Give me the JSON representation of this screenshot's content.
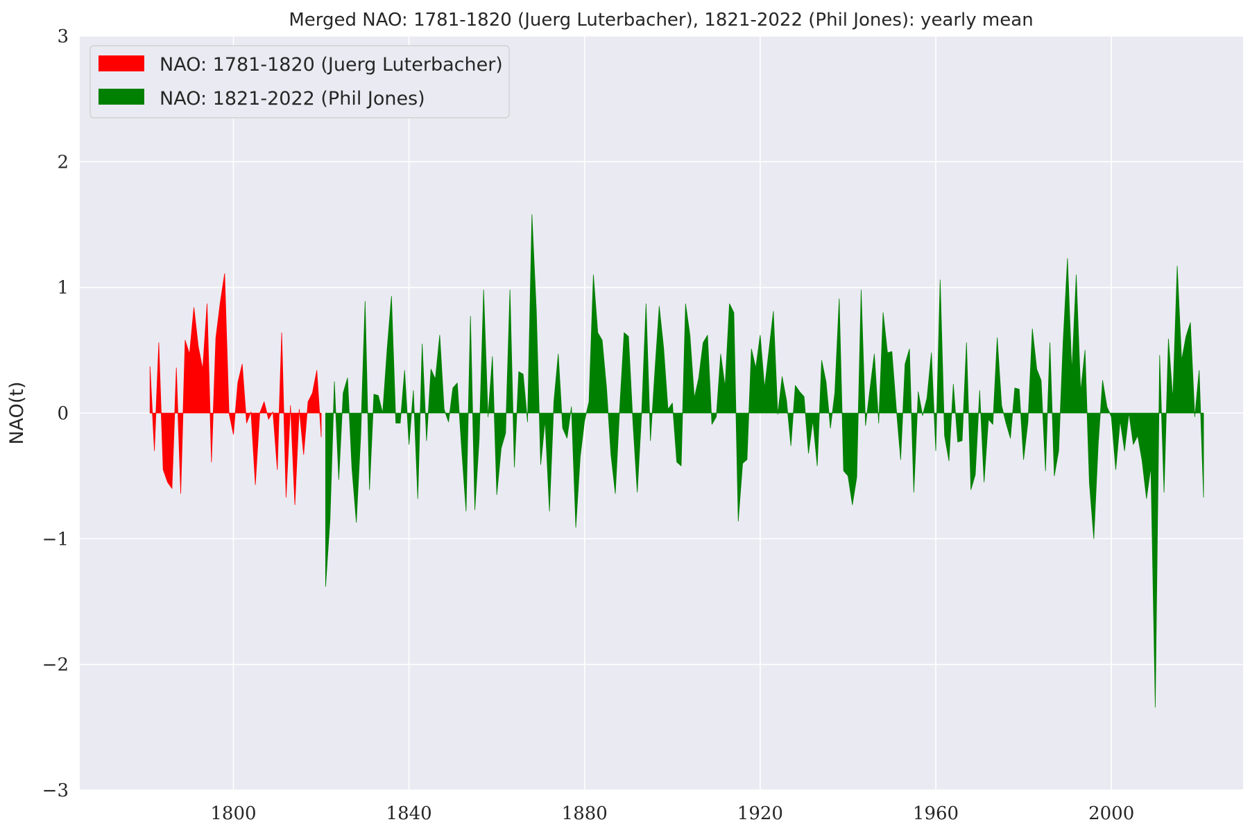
{
  "chart_data": {
    "type": "area",
    "title": "Merged NAO: 1781-1820 (Juerg Luterbacher), 1821-2022 (Phil Jones): yearly mean",
    "xlabel": "",
    "ylabel": "NAO(t)",
    "xlim": [
      1765,
      2030
    ],
    "ylim": [
      -3,
      3
    ],
    "xticks": [
      1800,
      1840,
      1880,
      1920,
      1960,
      2000
    ],
    "yticks": [
      -3,
      -2,
      -1,
      0,
      1,
      2,
      3
    ],
    "xtick_labels": [
      "1800",
      "1840",
      "1880",
      "1920",
      "1960",
      "2000"
    ],
    "ytick_labels": [
      "−3",
      "−2",
      "−1",
      "0",
      "1",
      "2",
      "3"
    ],
    "grid": true,
    "legend_position": "top-left",
    "series": [
      {
        "name": "NAO: 1781-1820 (Juerg Luterbacher)",
        "color": "#ff0000",
        "x_start": 1781,
        "values": [
          0.37,
          -0.3,
          0.56,
          -0.45,
          -0.55,
          -0.6,
          0.36,
          -0.64,
          0.58,
          0.47,
          0.84,
          0.53,
          0.35,
          0.87,
          -0.39,
          0.6,
          0.88,
          1.11,
          0.0,
          -0.17,
          0.24,
          0.39,
          -0.08,
          0.01,
          -0.57,
          0.0,
          0.09,
          -0.05,
          0.01,
          -0.45,
          0.64,
          -0.67,
          0.06,
          -0.73,
          0.03,
          -0.33,
          0.09,
          0.16,
          0.34,
          -0.19
        ]
      },
      {
        "name": "NAO: 1821-2022 (Phil Jones)",
        "color": "#008000",
        "x_start": 1821,
        "values": [
          -1.38,
          -0.85,
          0.25,
          -0.53,
          0.16,
          0.28,
          -0.44,
          -0.87,
          -0.18,
          0.89,
          -0.61,
          0.15,
          0.14,
          0.0,
          0.5,
          0.93,
          -0.08,
          -0.08,
          0.34,
          -0.25,
          0.18,
          -0.68,
          0.55,
          -0.22,
          0.35,
          0.27,
          0.62,
          0.03,
          -0.07,
          0.2,
          0.24,
          -0.29,
          -0.78,
          0.77,
          -0.77,
          -0.2,
          0.98,
          -0.03,
          0.45,
          -0.65,
          -0.28,
          -0.16,
          0.98,
          -0.43,
          0.33,
          0.31,
          -0.07,
          1.58,
          0.82,
          -0.41,
          -0.06,
          -0.78,
          0.09,
          0.47,
          -0.12,
          -0.2,
          0.05,
          -0.91,
          -0.35,
          -0.06,
          0.09,
          1.1,
          0.64,
          0.58,
          0.2,
          -0.33,
          -0.64,
          0.04,
          0.64,
          0.61,
          -0.07,
          -0.63,
          0.0,
          0.87,
          -0.22,
          0.33,
          0.85,
          0.52,
          0.03,
          0.08,
          -0.39,
          -0.42,
          0.87,
          0.62,
          0.12,
          0.28,
          0.56,
          0.62,
          -0.09,
          -0.03,
          0.47,
          0.21,
          0.87,
          0.8,
          -0.86,
          -0.4,
          -0.37,
          0.51,
          0.36,
          0.62,
          0.2,
          0.5,
          0.81,
          -0.01,
          0.29,
          0.1,
          -0.26,
          0.22,
          0.17,
          0.13,
          -0.32,
          -0.06,
          -0.42,
          0.42,
          0.25,
          -0.12,
          0.16,
          0.91,
          -0.46,
          -0.5,
          -0.73,
          -0.51,
          0.98,
          -0.1,
          0.19,
          0.47,
          -0.08,
          0.8,
          0.48,
          0.49,
          0.04,
          -0.37,
          0.39,
          0.51,
          -0.63,
          0.17,
          -0.02,
          0.12,
          0.48,
          -0.3,
          1.06,
          -0.18,
          -0.38,
          0.23,
          -0.23,
          -0.22,
          0.56,
          -0.61,
          -0.49,
          0.18,
          -0.55,
          -0.05,
          -0.09,
          0.6,
          0.06,
          -0.08,
          -0.2,
          0.2,
          0.19,
          -0.37,
          -0.07,
          0.67,
          0.35,
          0.26,
          -0.46,
          0.56,
          -0.5,
          -0.3,
          0.56,
          1.23,
          0.33,
          1.1,
          0.17,
          0.5,
          -0.56,
          -1.0,
          -0.25,
          0.26,
          0.05,
          -0.03,
          -0.45,
          -0.06,
          -0.3,
          0.0,
          -0.25,
          -0.18,
          -0.38,
          -0.68,
          -0.43,
          -2.34,
          0.46,
          -0.63,
          0.59,
          0.11,
          1.17,
          0.42,
          0.61,
          0.72,
          -0.03,
          0.34,
          -0.67
        ]
      }
    ]
  }
}
